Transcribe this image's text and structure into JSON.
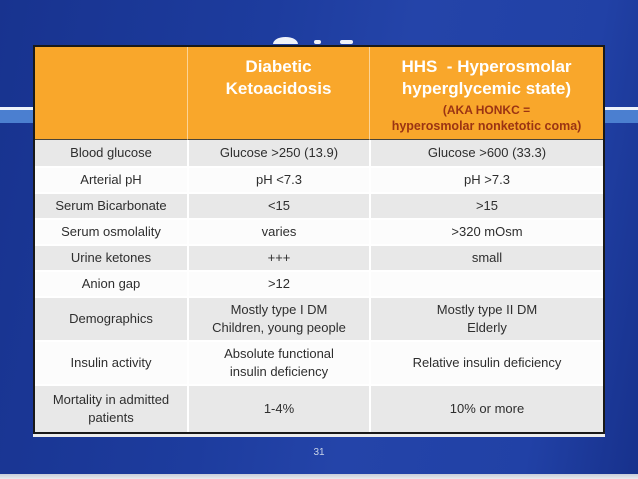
{
  "slide": {
    "page_number": "31"
  },
  "table": {
    "header": {
      "empty_corner": "",
      "dka_title": "Diabetic\nKetoacidosis",
      "hhs_title": "HHS  - Hyperosmolar\nhyperglycemic state)",
      "hhs_sub1": "(AKA HONKC =",
      "hhs_sub2": "hyperosmolar nonketotic coma)"
    },
    "rows": [
      {
        "label": "Blood glucose",
        "dka": "Glucose >250 (13.9)",
        "hhs": "Glucose >600 (33.3)"
      },
      {
        "label": "Arterial pH",
        "dka": "pH <7.3",
        "hhs": "pH >7.3"
      },
      {
        "label": "Serum Bicarbonate",
        "dka": "<15",
        "hhs": ">15"
      },
      {
        "label": "Serum osmolality",
        "dka": "varies",
        "hhs": ">320 mOsm"
      },
      {
        "label": "Urine ketones",
        "dka": "+++",
        "hhs": "small"
      },
      {
        "label": "Anion gap",
        "dka": ">12",
        "hhs": ""
      },
      {
        "label": "Demographics",
        "dka": "Mostly type I DM\nChildren, young people",
        "hhs": "Mostly type II DM\nElderly"
      },
      {
        "label": "Insulin activity",
        "dka": "Absolute functional\ninsulin deficiency",
        "hhs": "Relative insulin deficiency"
      },
      {
        "label": "Mortality in admitted\npatients",
        "dka": "1-4%",
        "hhs": "10% or more"
      }
    ]
  },
  "colors": {
    "background_blue": "#1e3da0",
    "accent_stripe_blue": "#4b7fd0",
    "header_orange": "#f9a72b",
    "header_text": "#ffffff",
    "header_subtext_red": "#9b3413",
    "row_shaded": "#e8e8e8",
    "row_plain": "#fcfcfc",
    "body_text": "#2e2e2e",
    "table_border": "#191919",
    "page_number_text": "#c8d3e8"
  }
}
